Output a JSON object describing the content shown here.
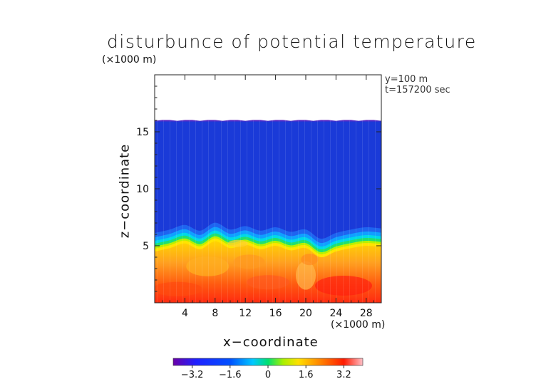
{
  "chart_data": {
    "type": "heatmap",
    "title": "disturbunce of potential temperature",
    "scale_note": "(×1000 m)",
    "meta_lines": [
      "y=100 m",
      "t=157200 sec"
    ],
    "xlabel": "x−coordinate",
    "xunit": "(×1000 m)",
    "ylabel": "z−coordinate",
    "xlim": [
      0,
      30
    ],
    "ylim": [
      0,
      20
    ],
    "x_ticks": [
      4,
      8,
      12,
      16,
      20,
      24,
      28
    ],
    "x_tick_labels": [
      "4",
      "8",
      "12",
      "16",
      "20",
      "24",
      "28"
    ],
    "y_ticks": [
      5,
      10,
      15
    ],
    "y_tick_labels": [
      "5",
      "10",
      "15"
    ],
    "data_top_z": 16,
    "interface_z_profile": {
      "x": [
        0,
        2,
        4,
        6,
        8,
        10,
        12,
        14,
        16,
        18,
        20,
        22,
        24,
        26,
        28,
        30
      ],
      "z": [
        5.0,
        5.3,
        5.7,
        5.2,
        5.9,
        5.3,
        5.6,
        5.2,
        5.5,
        5.1,
        5.3,
        4.5,
        5.0,
        5.3,
        5.5,
        5.4
      ]
    },
    "colorbar": {
      "range": [
        -4,
        4
      ],
      "ticks": [
        -3.2,
        -1.6,
        0,
        1.6,
        3.2
      ],
      "tick_labels": [
        "−3.2",
        "−1.6",
        "0",
        "1.6",
        "3.2"
      ],
      "colors": [
        "#6a00a8",
        "#1a1aff",
        "#0050ff",
        "#00c8ff",
        "#00e070",
        "#a8f000",
        "#ffe000",
        "#ff8000",
        "#ff1a00",
        "#ffc0c8"
      ]
    },
    "grid": false
  }
}
